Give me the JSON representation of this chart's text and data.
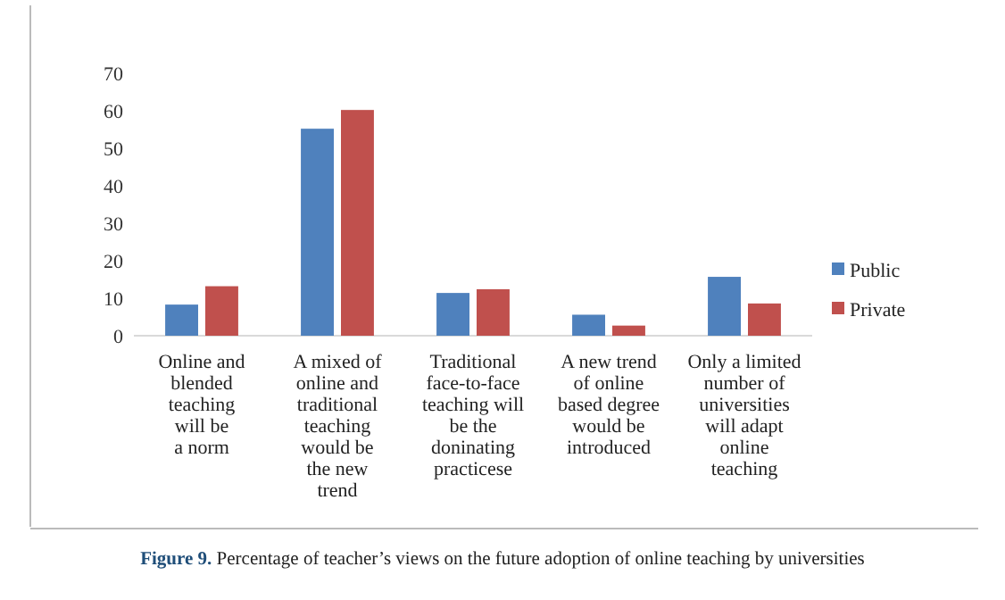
{
  "chart_data": {
    "type": "bar",
    "title": "Figure 9. Percentage of teacher’s views on the future adoption of online teaching by universities",
    "categories": [
      "Online and\nblended\nteaching\nwill be\na norm",
      "A mixed of\nonline and\ntraditional\nteaching\nwould be\nthe new\ntrend",
      "Traditional\nface-to-face\nteaching will\nbe the\ndoninating\npracticese",
      "A new trend\nof online\nbased degree\nwould be\nintroduced",
      "Only a limited\nnumber of\nuniversities\nwill adapt\nonline\nteaching"
    ],
    "series": [
      {
        "name": "Public",
        "color": "#4f81bd",
        "values": [
          8.3,
          55.2,
          11.4,
          5.6,
          15.7
        ]
      },
      {
        "name": "Private",
        "color": "#c0504d",
        "values": [
          13.2,
          60.2,
          12.4,
          2.7,
          8.6
        ]
      }
    ],
    "ylim": [
      0,
      70
    ],
    "yticks": [
      0,
      10,
      20,
      30,
      40,
      50,
      60,
      70
    ],
    "grid": false,
    "legend": "right"
  }
}
